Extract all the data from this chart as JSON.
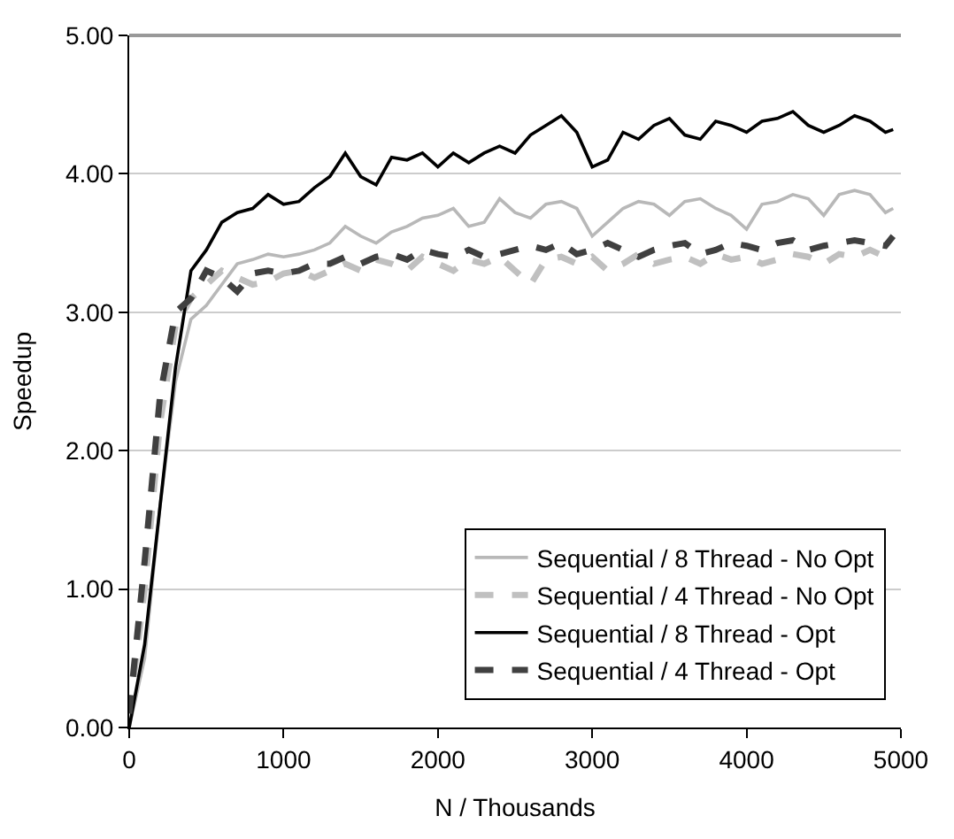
{
  "chart_data": {
    "type": "line",
    "xlabel": "N / Thousands",
    "ylabel": "Speedup",
    "xlim": [
      0,
      5000
    ],
    "xticks": [
      0,
      1000,
      2000,
      3000,
      4000,
      5000
    ],
    "ylim": [
      0,
      5
    ],
    "yticks": [
      {
        "value": 0,
        "label": "0.00"
      },
      {
        "value": 1,
        "label": "1.00"
      },
      {
        "value": 2,
        "label": "2.00"
      },
      {
        "value": 3,
        "label": "3.00"
      },
      {
        "value": 4,
        "label": "4.00"
      },
      {
        "value": 5,
        "label": "5.00"
      }
    ],
    "grid": "y",
    "legend": "bottom right",
    "marker": "none",
    "x": [
      0,
      100,
      200,
      300,
      400,
      500,
      600,
      700,
      800,
      900,
      1000,
      1100,
      1200,
      1300,
      1400,
      1500,
      1600,
      1700,
      1800,
      1900,
      2000,
      2100,
      2200,
      2300,
      2400,
      2500,
      2600,
      2700,
      2800,
      2900,
      3000,
      3100,
      3200,
      3300,
      3400,
      3500,
      3600,
      3700,
      3800,
      3900,
      4000,
      4100,
      4200,
      4300,
      4400,
      4500,
      4600,
      4700,
      4800,
      4900,
      4950
    ],
    "series": [
      {
        "name": "Sequential / 8 Thread - No Opt",
        "color": "#b8b8b8",
        "line_style": "solid",
        "values": [
          0,
          0.5,
          1.6,
          2.5,
          2.95,
          3.05,
          3.2,
          3.35,
          3.38,
          3.42,
          3.4,
          3.42,
          3.45,
          3.5,
          3.62,
          3.55,
          3.5,
          3.58,
          3.62,
          3.68,
          3.7,
          3.75,
          3.62,
          3.65,
          3.82,
          3.72,
          3.68,
          3.78,
          3.8,
          3.75,
          3.55,
          3.65,
          3.75,
          3.8,
          3.78,
          3.7,
          3.8,
          3.82,
          3.75,
          3.7,
          3.6,
          3.78,
          3.8,
          3.85,
          3.82,
          3.7,
          3.85,
          3.88,
          3.85,
          3.72,
          3.75
        ]
      },
      {
        "name": "Sequential / 4 Thread - No Opt",
        "color": "#c0c0c0",
        "line_style": "dashed",
        "values": [
          0.1,
          1.0,
          2.2,
          2.9,
          3.1,
          3.2,
          3.3,
          3.25,
          3.2,
          3.22,
          3.28,
          3.3,
          3.25,
          3.3,
          3.35,
          3.3,
          3.38,
          3.35,
          3.3,
          3.4,
          3.35,
          3.3,
          3.38,
          3.35,
          3.4,
          3.3,
          3.2,
          3.38,
          3.4,
          3.35,
          3.4,
          3.3,
          3.35,
          3.42,
          3.35,
          3.38,
          3.4,
          3.35,
          3.42,
          3.38,
          3.4,
          3.35,
          3.38,
          3.42,
          3.4,
          3.35,
          3.42,
          3.4,
          3.45,
          3.4,
          3.42
        ]
      },
      {
        "name": "Sequential / 8 Thread - Opt",
        "color": "#000000",
        "line_style": "solid",
        "values": [
          0,
          0.6,
          1.6,
          2.6,
          3.3,
          3.45,
          3.65,
          3.72,
          3.75,
          3.85,
          3.78,
          3.8,
          3.9,
          3.98,
          4.15,
          3.98,
          3.92,
          4.12,
          4.1,
          4.15,
          4.05,
          4.15,
          4.08,
          4.15,
          4.2,
          4.15,
          4.28,
          4.35,
          4.42,
          4.3,
          4.05,
          4.1,
          4.3,
          4.25,
          4.35,
          4.4,
          4.28,
          4.25,
          4.38,
          4.35,
          4.3,
          4.38,
          4.4,
          4.45,
          4.35,
          4.3,
          4.35,
          4.42,
          4.38,
          4.3,
          4.32
        ]
      },
      {
        "name": "Sequential / 4 Thread - Opt",
        "color": "#404040",
        "line_style": "dashed",
        "values": [
          0.1,
          1.2,
          2.4,
          3.0,
          3.1,
          3.3,
          3.25,
          3.15,
          3.28,
          3.3,
          3.28,
          3.3,
          3.35,
          3.35,
          3.4,
          3.35,
          3.4,
          3.42,
          3.38,
          3.45,
          3.42,
          3.4,
          3.45,
          3.4,
          3.42,
          3.45,
          3.48,
          3.45,
          3.5,
          3.42,
          3.45,
          3.5,
          3.45,
          3.4,
          3.45,
          3.48,
          3.5,
          3.42,
          3.45,
          3.5,
          3.48,
          3.45,
          3.5,
          3.52,
          3.45,
          3.48,
          3.5,
          3.52,
          3.5,
          3.48,
          3.55
        ]
      }
    ]
  }
}
